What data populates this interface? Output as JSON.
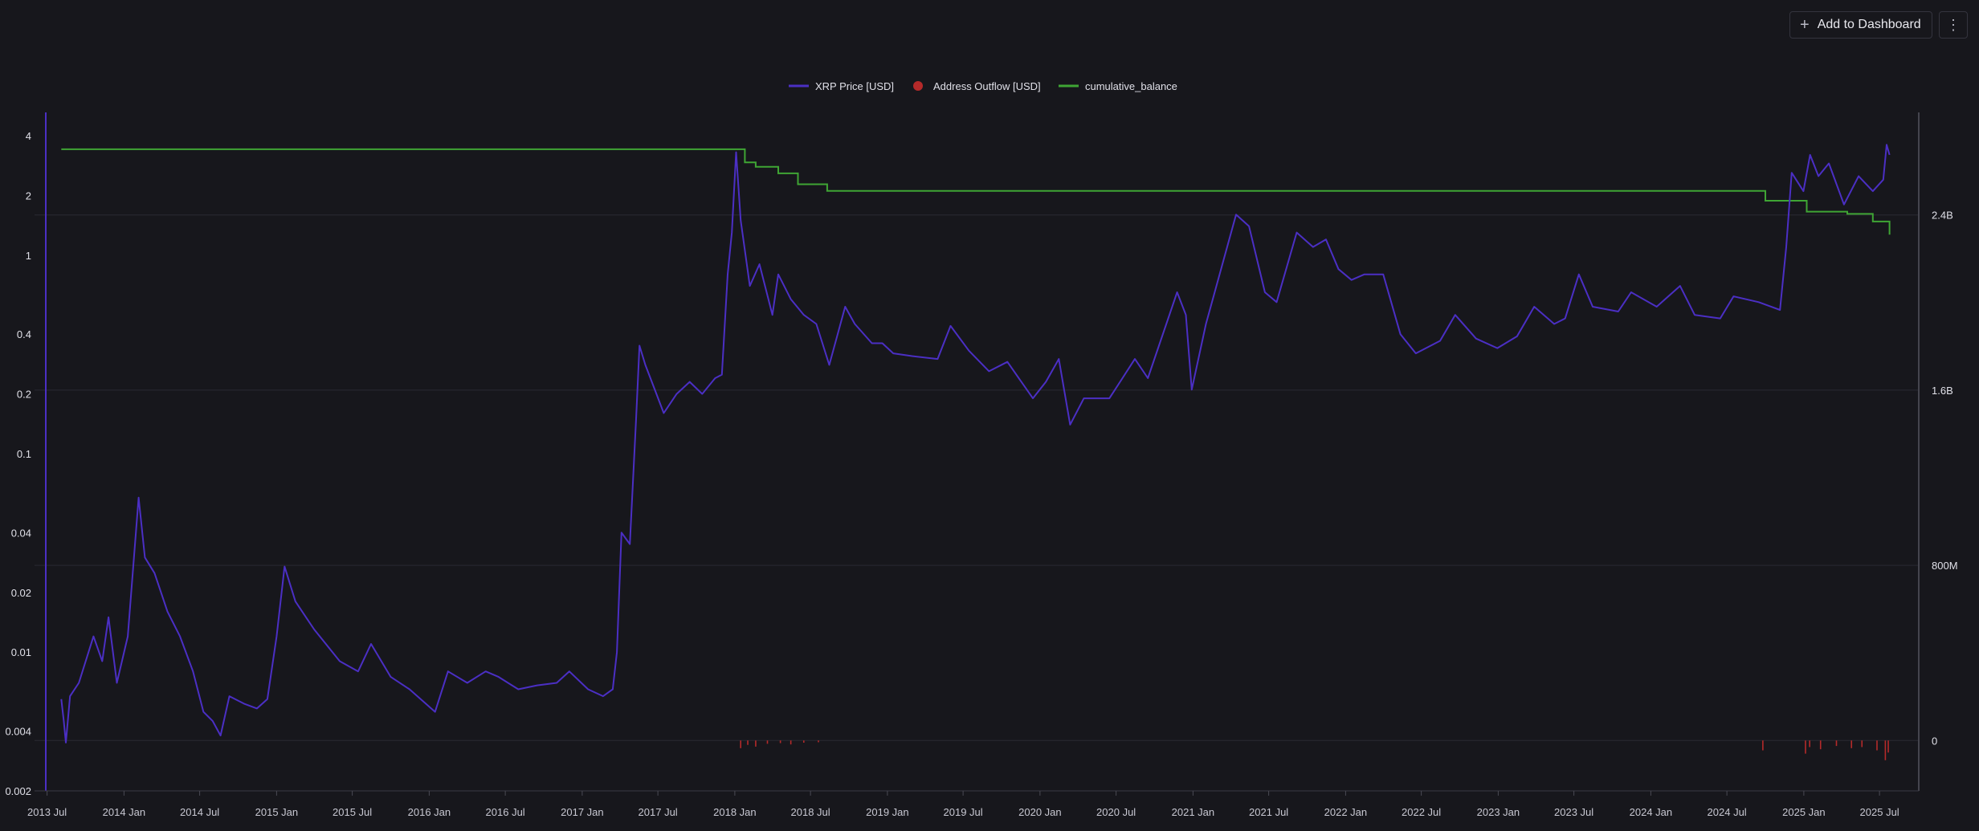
{
  "toolbar": {
    "add_label": "Add to Dashboard",
    "plus_icon": "plus-icon",
    "more_icon": "more-vertical-icon"
  },
  "chart_data": {
    "type": "line",
    "title": "",
    "legend_position": "top-center",
    "legend": [
      "XRP Price [USD]",
      "Address Outflow [USD]",
      "cumulative_balance"
    ],
    "colors": {
      "price": "#4b2fc4",
      "outflow": "#b52a2a",
      "balance": "#3fa534",
      "grid": "#2a2a32"
    },
    "y_left": {
      "scale": "log",
      "range": [
        0.002,
        5
      ],
      "ticks": [
        {
          "value": 4,
          "label": "4"
        },
        {
          "value": 2,
          "label": "2"
        },
        {
          "value": 1,
          "label": "1"
        },
        {
          "value": 0.4,
          "label": "0.4"
        },
        {
          "value": 0.2,
          "label": "0.2"
        },
        {
          "value": 0.1,
          "label": "0.1"
        },
        {
          "value": 0.04,
          "label": "0.04"
        },
        {
          "value": 0.02,
          "label": "0.02"
        },
        {
          "value": 0.01,
          "label": "0.01"
        },
        {
          "value": 0.004,
          "label": "0.004"
        },
        {
          "value": 0.002,
          "label": "0.002"
        }
      ]
    },
    "y_right": {
      "scale": "linear",
      "range": [
        -230000000,
        2850000000
      ],
      "ticks": [
        {
          "value": 2400000000,
          "label": "2.4B"
        },
        {
          "value": 1600000000,
          "label": "1.6B"
        },
        {
          "value": 800000000,
          "label": "800M"
        },
        {
          "value": 0,
          "label": "0"
        }
      ]
    },
    "x": {
      "range": [
        "2013-06-01",
        "2025-10-01"
      ],
      "ticks": [
        {
          "value": "2013-07-01",
          "label": "2013 Jul"
        },
        {
          "value": "2014-01-01",
          "label": "2014 Jan"
        },
        {
          "value": "2014-07-01",
          "label": "2014 Jul"
        },
        {
          "value": "2015-01-01",
          "label": "2015 Jan"
        },
        {
          "value": "2015-07-01",
          "label": "2015 Jul"
        },
        {
          "value": "2016-01-01",
          "label": "2016 Jan"
        },
        {
          "value": "2016-07-01",
          "label": "2016 Jul"
        },
        {
          "value": "2017-01-01",
          "label": "2017 Jan"
        },
        {
          "value": "2017-07-01",
          "label": "2017 Jul"
        },
        {
          "value": "2018-01-01",
          "label": "2018 Jan"
        },
        {
          "value": "2018-07-01",
          "label": "2018 Jul"
        },
        {
          "value": "2019-01-01",
          "label": "2019 Jan"
        },
        {
          "value": "2019-07-01",
          "label": "2019 Jul"
        },
        {
          "value": "2020-01-01",
          "label": "2020 Jan"
        },
        {
          "value": "2020-07-01",
          "label": "2020 Jul"
        },
        {
          "value": "2021-01-01",
          "label": "2021 Jan"
        },
        {
          "value": "2021-07-01",
          "label": "2021 Jul"
        },
        {
          "value": "2022-01-01",
          "label": "2022 Jan"
        },
        {
          "value": "2022-07-01",
          "label": "2022 Jul"
        },
        {
          "value": "2023-01-01",
          "label": "2023 Jan"
        },
        {
          "value": "2023-07-01",
          "label": "2023 Jul"
        },
        {
          "value": "2024-01-01",
          "label": "2024 Jan"
        },
        {
          "value": "2024-07-01",
          "label": "2024 Jul"
        },
        {
          "value": "2025-01-01",
          "label": "2025 Jan"
        },
        {
          "value": "2025-07-01",
          "label": "2025 Jul"
        }
      ]
    },
    "series": [
      {
        "name": "XRP Price [USD]",
        "axis": "left",
        "points": [
          [
            "2013-08-04",
            0.0058
          ],
          [
            "2013-08-10",
            0.0045
          ],
          [
            "2013-08-15",
            0.0035
          ],
          [
            "2013-08-25",
            0.006
          ],
          [
            "2013-09-15",
            0.007
          ],
          [
            "2013-10-20",
            0.012
          ],
          [
            "2013-11-10",
            0.009
          ],
          [
            "2013-11-25",
            0.015
          ],
          [
            "2013-12-15",
            0.007
          ],
          [
            "2014-01-10",
            0.012
          ],
          [
            "2014-02-05",
            0.06
          ],
          [
            "2014-02-20",
            0.03
          ],
          [
            "2014-03-15",
            0.025
          ],
          [
            "2014-04-15",
            0.016
          ],
          [
            "2014-05-15",
            0.012
          ],
          [
            "2014-06-15",
            0.008
          ],
          [
            "2014-07-10",
            0.005
          ],
          [
            "2014-08-01",
            0.0045
          ],
          [
            "2014-08-20",
            0.0038
          ],
          [
            "2014-09-10",
            0.006
          ],
          [
            "2014-10-15",
            0.0055
          ],
          [
            "2014-11-15",
            0.0052
          ],
          [
            "2014-12-10",
            0.0058
          ],
          [
            "2015-01-01",
            0.012
          ],
          [
            "2015-01-20",
            0.027
          ],
          [
            "2015-02-15",
            0.018
          ],
          [
            "2015-04-01",
            0.013
          ],
          [
            "2015-06-01",
            0.009
          ],
          [
            "2015-07-15",
            0.008
          ],
          [
            "2015-08-15",
            0.011
          ],
          [
            "2015-10-01",
            0.0075
          ],
          [
            "2015-11-15",
            0.0065
          ],
          [
            "2016-01-15",
            0.005
          ],
          [
            "2016-02-15",
            0.008
          ],
          [
            "2016-04-01",
            0.007
          ],
          [
            "2016-05-15",
            0.008
          ],
          [
            "2016-06-15",
            0.0075
          ],
          [
            "2016-08-01",
            0.0065
          ],
          [
            "2016-09-15",
            0.0068
          ],
          [
            "2016-11-01",
            0.007
          ],
          [
            "2016-12-01",
            0.008
          ],
          [
            "2017-01-15",
            0.0065
          ],
          [
            "2017-02-20",
            0.006
          ],
          [
            "2017-03-15",
            0.0065
          ],
          [
            "2017-03-25",
            0.01
          ],
          [
            "2017-04-05",
            0.04
          ],
          [
            "2017-04-25",
            0.035
          ],
          [
            "2017-05-10",
            0.15
          ],
          [
            "2017-05-18",
            0.35
          ],
          [
            "2017-06-01",
            0.28
          ],
          [
            "2017-06-20",
            0.22
          ],
          [
            "2017-07-15",
            0.16
          ],
          [
            "2017-08-15",
            0.2
          ],
          [
            "2017-09-15",
            0.23
          ],
          [
            "2017-10-15",
            0.2
          ],
          [
            "2017-11-15",
            0.24
          ],
          [
            "2017-12-01",
            0.25
          ],
          [
            "2017-12-15",
            0.8
          ],
          [
            "2017-12-25",
            1.3
          ],
          [
            "2018-01-04",
            3.3
          ],
          [
            "2018-01-15",
            1.5
          ],
          [
            "2018-02-06",
            0.7
          ],
          [
            "2018-03-01",
            0.9
          ],
          [
            "2018-04-01",
            0.5
          ],
          [
            "2018-04-15",
            0.8
          ],
          [
            "2018-05-15",
            0.6
          ],
          [
            "2018-06-15",
            0.5
          ],
          [
            "2018-07-15",
            0.45
          ],
          [
            "2018-08-15",
            0.28
          ],
          [
            "2018-09-22",
            0.55
          ],
          [
            "2018-10-15",
            0.45
          ],
          [
            "2018-11-25",
            0.36
          ],
          [
            "2018-12-20",
            0.36
          ],
          [
            "2019-01-15",
            0.32
          ],
          [
            "2019-03-01",
            0.31
          ],
          [
            "2019-05-01",
            0.3
          ],
          [
            "2019-06-01",
            0.44
          ],
          [
            "2019-07-15",
            0.33
          ],
          [
            "2019-09-01",
            0.26
          ],
          [
            "2019-10-15",
            0.29
          ],
          [
            "2019-12-15",
            0.19
          ],
          [
            "2020-01-15",
            0.23
          ],
          [
            "2020-02-15",
            0.3
          ],
          [
            "2020-03-13",
            0.14
          ],
          [
            "2020-04-15",
            0.19
          ],
          [
            "2020-06-15",
            0.19
          ],
          [
            "2020-08-15",
            0.3
          ],
          [
            "2020-09-15",
            0.24
          ],
          [
            "2020-11-24",
            0.65
          ],
          [
            "2020-12-15",
            0.5
          ],
          [
            "2020-12-29",
            0.21
          ],
          [
            "2021-02-01",
            0.45
          ],
          [
            "2021-04-14",
            1.6
          ],
          [
            "2021-05-15",
            1.4
          ],
          [
            "2021-06-22",
            0.65
          ],
          [
            "2021-07-20",
            0.58
          ],
          [
            "2021-09-06",
            1.3
          ],
          [
            "2021-10-15",
            1.1
          ],
          [
            "2021-11-15",
            1.2
          ],
          [
            "2021-12-15",
            0.85
          ],
          [
            "2022-01-15",
            0.75
          ],
          [
            "2022-02-15",
            0.8
          ],
          [
            "2022-04-01",
            0.8
          ],
          [
            "2022-05-12",
            0.4
          ],
          [
            "2022-06-18",
            0.32
          ],
          [
            "2022-08-15",
            0.37
          ],
          [
            "2022-09-20",
            0.5
          ],
          [
            "2022-11-09",
            0.38
          ],
          [
            "2022-12-30",
            0.34
          ],
          [
            "2023-02-15",
            0.39
          ],
          [
            "2023-03-28",
            0.55
          ],
          [
            "2023-05-15",
            0.45
          ],
          [
            "2023-06-10",
            0.48
          ],
          [
            "2023-07-13",
            0.8
          ],
          [
            "2023-08-15",
            0.55
          ],
          [
            "2023-10-15",
            0.52
          ],
          [
            "2023-11-15",
            0.65
          ],
          [
            "2024-01-15",
            0.55
          ],
          [
            "2024-03-11",
            0.7
          ],
          [
            "2024-04-15",
            0.5
          ],
          [
            "2024-06-15",
            0.48
          ],
          [
            "2024-07-17",
            0.62
          ],
          [
            "2024-09-15",
            0.58
          ],
          [
            "2024-11-05",
            0.53
          ],
          [
            "2024-11-20",
            1.1
          ],
          [
            "2024-12-03",
            2.6
          ],
          [
            "2024-12-31",
            2.1
          ],
          [
            "2025-01-16",
            3.2
          ],
          [
            "2025-02-05",
            2.5
          ],
          [
            "2025-03-02",
            2.9
          ],
          [
            "2025-04-07",
            1.8
          ],
          [
            "2025-05-12",
            2.5
          ],
          [
            "2025-06-15",
            2.1
          ],
          [
            "2025-07-10",
            2.4
          ],
          [
            "2025-07-18",
            3.6
          ],
          [
            "2025-07-25",
            3.2
          ]
        ]
      },
      {
        "name": "cumulative_balance",
        "axis": "right",
        "step": true,
        "points": [
          [
            "2013-08-04",
            2700000000
          ],
          [
            "2018-01-05",
            2700000000
          ],
          [
            "2018-01-25",
            2640000000
          ],
          [
            "2018-02-20",
            2620000000
          ],
          [
            "2018-04-15",
            2590000000
          ],
          [
            "2018-06-01",
            2540000000
          ],
          [
            "2018-08-10",
            2510000000
          ],
          [
            "2024-09-25",
            2510000000
          ],
          [
            "2024-10-01",
            2465000000
          ],
          [
            "2024-12-20",
            2465000000
          ],
          [
            "2025-01-08",
            2415000000
          ],
          [
            "2025-04-15",
            2405000000
          ],
          [
            "2025-06-15",
            2370000000
          ],
          [
            "2025-07-25",
            2310000000
          ]
        ]
      },
      {
        "name": "Address Outflow [USD]",
        "axis": "right",
        "kind": "bar",
        "points": [
          [
            "2018-01-15",
            -35000000
          ],
          [
            "2018-02-01",
            -20000000
          ],
          [
            "2018-02-20",
            -28000000
          ],
          [
            "2018-03-20",
            -15000000
          ],
          [
            "2018-04-20",
            -12000000
          ],
          [
            "2018-05-15",
            -18000000
          ],
          [
            "2018-06-15",
            -10000000
          ],
          [
            "2018-07-20",
            -8000000
          ],
          [
            "2024-09-25",
            -45000000
          ],
          [
            "2025-01-05",
            -60000000
          ],
          [
            "2025-01-15",
            -30000000
          ],
          [
            "2025-02-10",
            -40000000
          ],
          [
            "2025-03-20",
            -25000000
          ],
          [
            "2025-04-25",
            -35000000
          ],
          [
            "2025-05-20",
            -30000000
          ],
          [
            "2025-06-25",
            -45000000
          ],
          [
            "2025-07-15",
            -90000000
          ],
          [
            "2025-07-22",
            -55000000
          ]
        ]
      }
    ]
  }
}
